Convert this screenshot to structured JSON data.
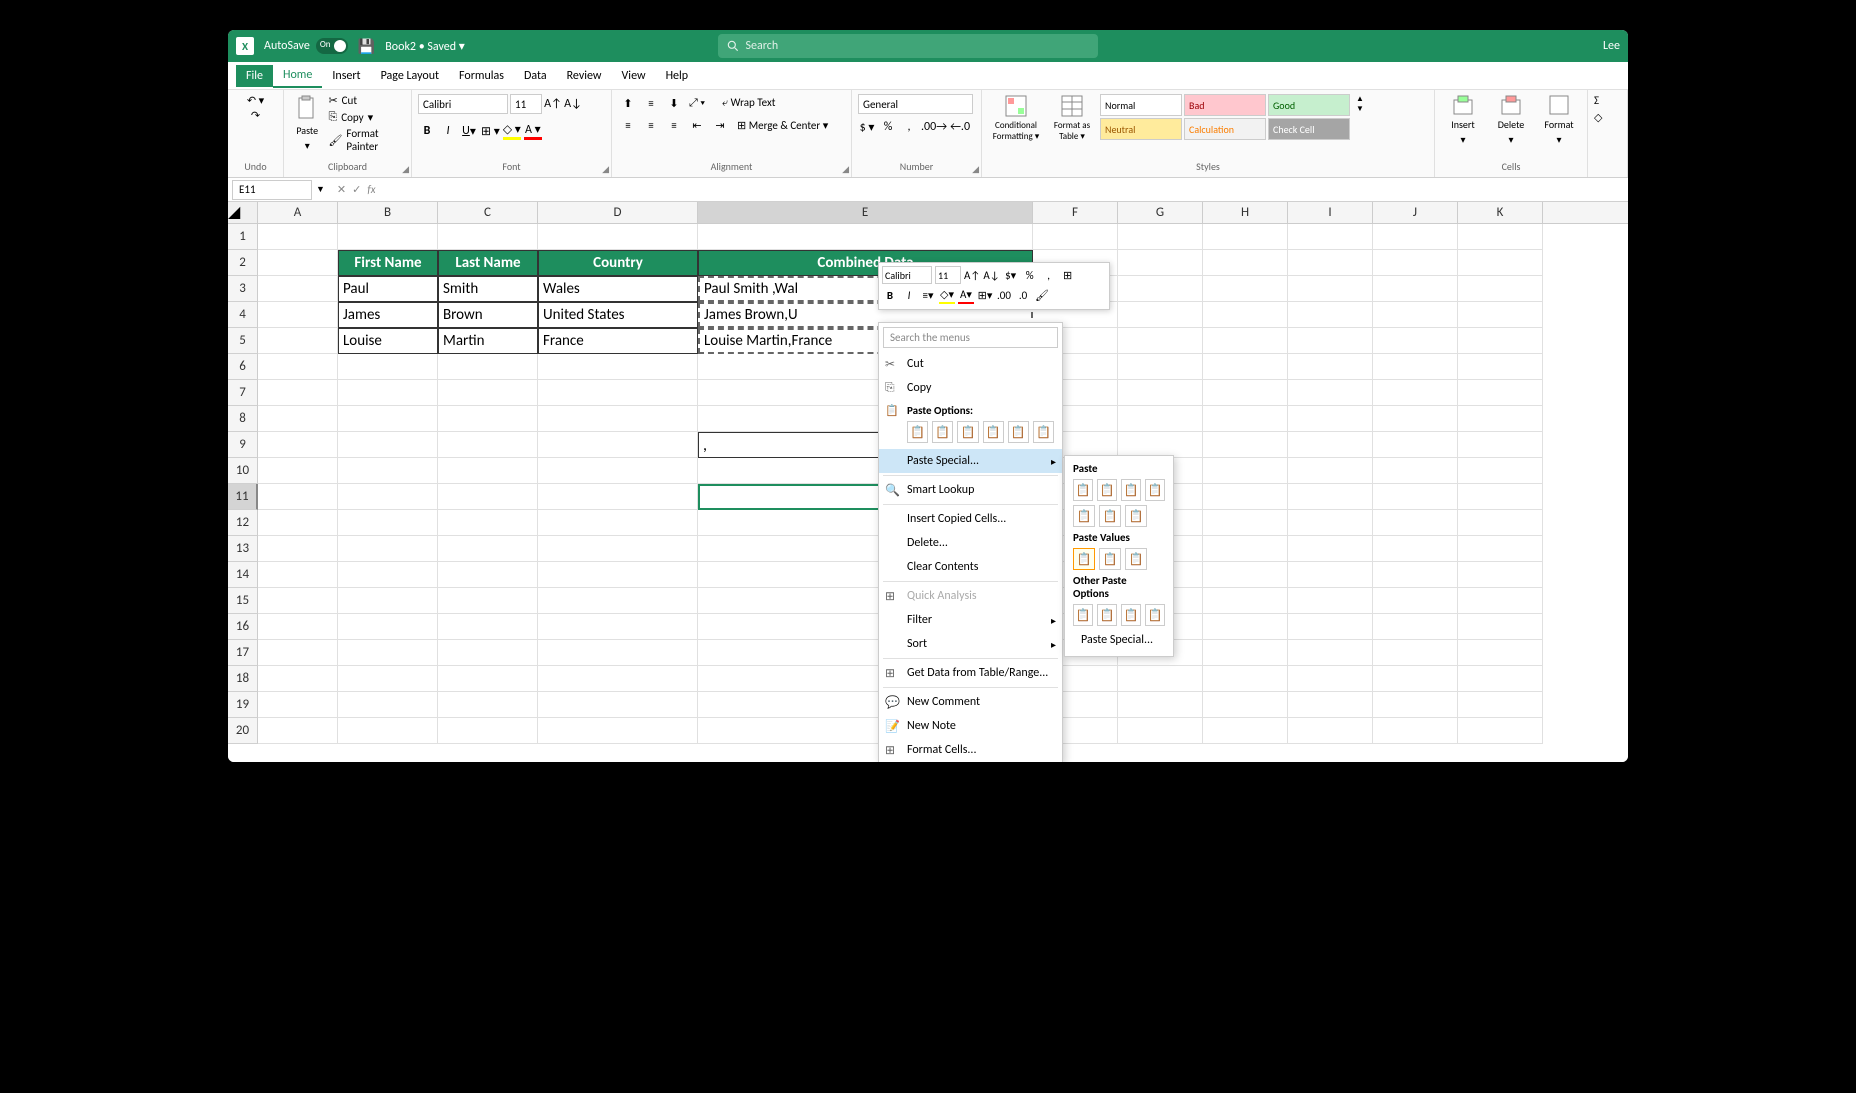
{
  "titlebar": {
    "autosave_label": "AutoSave",
    "autosave_state": "On",
    "document_name": "Book2 • Saved ▾",
    "search_placeholder": "Search",
    "user": "Lee "
  },
  "menubar": {
    "items": [
      "File",
      "Home",
      "Insert",
      "Page Layout",
      "Formulas",
      "Data",
      "Review",
      "View",
      "Help"
    ],
    "active": "Home"
  },
  "ribbon": {
    "undo_label": "Undo",
    "clipboard": {
      "paste": "Paste",
      "cut": "Cut",
      "copy": "Copy",
      "format_painter": "Format Painter",
      "label": "Clipboard"
    },
    "font": {
      "name": "Calibri",
      "size": "11",
      "label": "Font"
    },
    "alignment": {
      "wrap": "Wrap Text",
      "merge": "Merge & Center",
      "label": "Alignment"
    },
    "number": {
      "format": "General",
      "label": "Number"
    },
    "styles": {
      "cond": "Conditional Formatting ▾",
      "table": "Format as Table ▾",
      "normal": "Normal",
      "bad": "Bad",
      "good": "Good",
      "neutral": "Neutral",
      "calc": "Calculation",
      "check": "Check Cell",
      "label": "Styles"
    },
    "cells": {
      "insert": "Insert",
      "delete": "Delete",
      "format": "Format",
      "label": "Cells"
    }
  },
  "formulabar": {
    "cell_ref": "E11"
  },
  "columns": [
    "A",
    "B",
    "C",
    "D",
    "E",
    "F",
    "G",
    "H",
    "I",
    "J",
    "K"
  ],
  "table": {
    "headers": [
      "First Name",
      "Last Name",
      "Country",
      "Combined Data"
    ],
    "rows": [
      [
        "Paul",
        "Smith",
        "Wales",
        "Paul Smith ,Wal"
      ],
      [
        "James",
        "Brown",
        "United States",
        "James Brown,U"
      ],
      [
        "Louise",
        "Martin",
        "France",
        "Louise Martin,France"
      ]
    ]
  },
  "cell_e9": ",",
  "minitoolbar": {
    "font": "Calibri",
    "size": "11"
  },
  "context_menu": {
    "search": "Search the menus",
    "cut": "Cut",
    "copy": "Copy",
    "paste_options": "Paste Options:",
    "paste_special": "Paste Special...",
    "smart_lookup": "Smart Lookup",
    "insert_copied": "Insert Copied Cells...",
    "delete": "Delete...",
    "clear": "Clear Contents",
    "quick_analysis": "Quick Analysis",
    "filter": "Filter",
    "sort": "Sort",
    "get_data": "Get Data from Table/Range...",
    "new_comment": "New Comment",
    "new_note": "New Note",
    "format_cells": "Format Cells..."
  },
  "submenu": {
    "paste": "Paste",
    "paste_values": "Paste Values",
    "other": "Other Paste Options",
    "paste_special": "Paste Special..."
  },
  "colors": {
    "brand": "#1e8e5e",
    "table_header_bg": "#1e8e5e"
  }
}
